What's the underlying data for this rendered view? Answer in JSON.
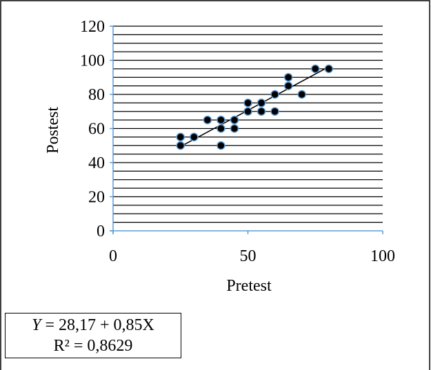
{
  "chart_data": {
    "type": "scatter",
    "xlabel": "Pretest",
    "ylabel": "Postest",
    "xlim": [
      0,
      100
    ],
    "ylim": [
      0,
      120
    ],
    "x_ticks": [
      "0",
      "50",
      "100"
    ],
    "y_ticks": [
      "0",
      "20",
      "40",
      "60",
      "80",
      "100",
      "120"
    ],
    "grid": "horizontal lines",
    "points": [
      {
        "x": 25,
        "y": 50
      },
      {
        "x": 25,
        "y": 55
      },
      {
        "x": 30,
        "y": 55
      },
      {
        "x": 35,
        "y": 65
      },
      {
        "x": 40,
        "y": 50
      },
      {
        "x": 40,
        "y": 60
      },
      {
        "x": 40,
        "y": 65
      },
      {
        "x": 45,
        "y": 60
      },
      {
        "x": 45,
        "y": 65
      },
      {
        "x": 50,
        "y": 70
      },
      {
        "x": 50,
        "y": 75
      },
      {
        "x": 55,
        "y": 70
      },
      {
        "x": 55,
        "y": 75
      },
      {
        "x": 60,
        "y": 70
      },
      {
        "x": 60,
        "y": 80
      },
      {
        "x": 65,
        "y": 85
      },
      {
        "x": 65,
        "y": 90
      },
      {
        "x": 70,
        "y": 80
      },
      {
        "x": 75,
        "y": 95
      },
      {
        "x": 80,
        "y": 95
      }
    ],
    "trendline": {
      "intercept": 28.17,
      "slope": 0.85,
      "x_range": [
        25,
        80
      ]
    },
    "colors": {
      "marker_fill": "#000000",
      "marker_edge": "#5b9bd5",
      "axis": "#5b9bd5",
      "grid": "#000000",
      "trendline": "#000000"
    }
  },
  "equation": {
    "y_symbol": "Y",
    "formula": " = 28,17 + 0,85X",
    "r_squared": "R² = 0,8629"
  }
}
